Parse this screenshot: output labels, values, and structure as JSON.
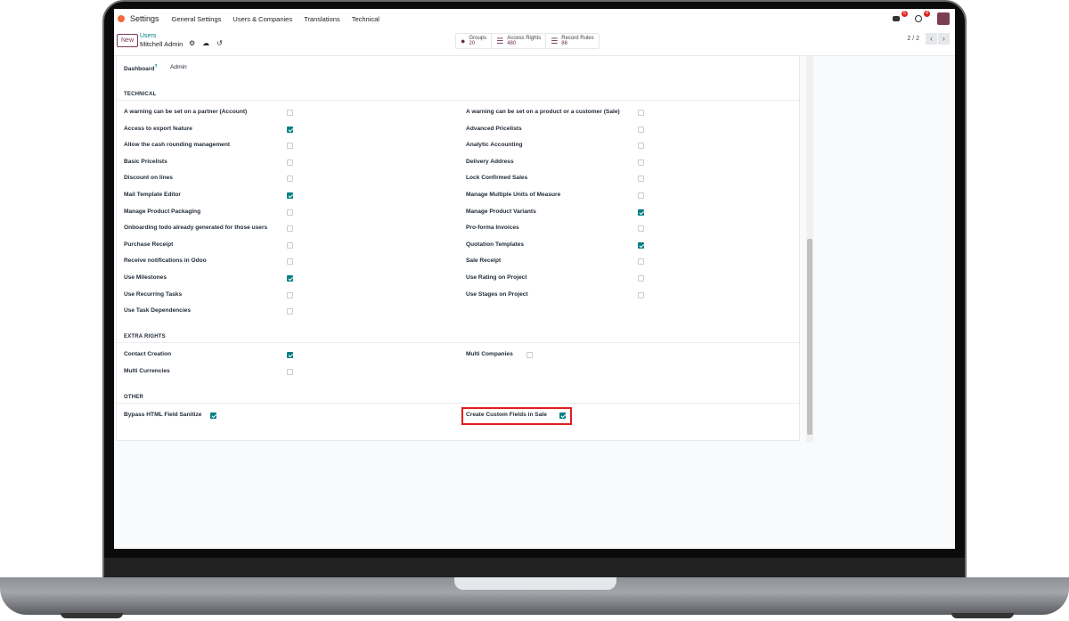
{
  "nav": {
    "app": "Settings",
    "menu": [
      "General Settings",
      "Users & Companies",
      "Translations",
      "Technical"
    ],
    "messages_badge": "6",
    "activity_badge": "4"
  },
  "control_panel": {
    "new_label": "New",
    "breadcrumb_parent": "Users",
    "record_name": "Mitchell Admin",
    "stats": [
      {
        "label": "Groups",
        "value": "20",
        "icon": "users-icon"
      },
      {
        "label": "Access Rights",
        "value": "480",
        "icon": "list-icon"
      },
      {
        "label": "Record Rules",
        "value": "86",
        "icon": "list-icon"
      }
    ],
    "pager": "2 / 2"
  },
  "dashboard": {
    "label": "Dashboard",
    "help": "?",
    "value": "Admin"
  },
  "sections": [
    {
      "title": "TECHNICAL",
      "left": [
        {
          "label": "A warning can be set on a partner (Account)",
          "checked": false
        },
        {
          "label": "Access to export feature",
          "checked": true
        },
        {
          "label": "Allow the cash rounding management",
          "checked": false
        },
        {
          "label": "Basic Pricelists",
          "checked": false
        },
        {
          "label": "Discount on lines",
          "checked": false
        },
        {
          "label": "Mail Template Editor",
          "checked": true
        },
        {
          "label": "Manage Product Packaging",
          "checked": false
        },
        {
          "label": "Onboarding todo already generated for those users",
          "checked": false
        },
        {
          "label": "Purchase Receipt",
          "checked": false
        },
        {
          "label": "Receive notifications in Odoo",
          "checked": false
        },
        {
          "label": "Use Milestones",
          "checked": true
        },
        {
          "label": "Use Recurring Tasks",
          "checked": false
        },
        {
          "label": "Use Task Dependencies",
          "checked": false
        }
      ],
      "right": [
        {
          "label": "A warning can be set on a product or a customer (Sale)",
          "checked": false
        },
        {
          "label": "Advanced Pricelists",
          "checked": false
        },
        {
          "label": "Analytic Accounting",
          "checked": false
        },
        {
          "label": "Delivery Address",
          "checked": false
        },
        {
          "label": "Lock Confirmed Sales",
          "checked": false
        },
        {
          "label": "Manage Multiple Units of Measure",
          "checked": false
        },
        {
          "label": "Manage Product Variants",
          "checked": true
        },
        {
          "label": "Pro-forma Invoices",
          "checked": false
        },
        {
          "label": "Quotation Templates",
          "checked": true
        },
        {
          "label": "Sale Receipt",
          "checked": false
        },
        {
          "label": "Use Rating on Project",
          "checked": false
        },
        {
          "label": "Use Stages on Project",
          "checked": false
        }
      ]
    },
    {
      "title": "EXTRA RIGHTS",
      "left": [
        {
          "label": "Contact Creation",
          "checked": true
        },
        {
          "label": "Multi Currencies",
          "checked": false
        }
      ],
      "right": [
        {
          "label": "Multi Companies",
          "checked": false
        }
      ]
    },
    {
      "title": "OTHER",
      "left": [
        {
          "label": "Bypass HTML Field Sanitize",
          "checked": true
        }
      ],
      "right": [
        {
          "label": "Create Custom Fields in Sale",
          "checked": true,
          "highlighted": true
        }
      ]
    }
  ],
  "colors": {
    "accent": "#017e84",
    "brand": "#714b67",
    "highlight": "#e11d1d"
  }
}
